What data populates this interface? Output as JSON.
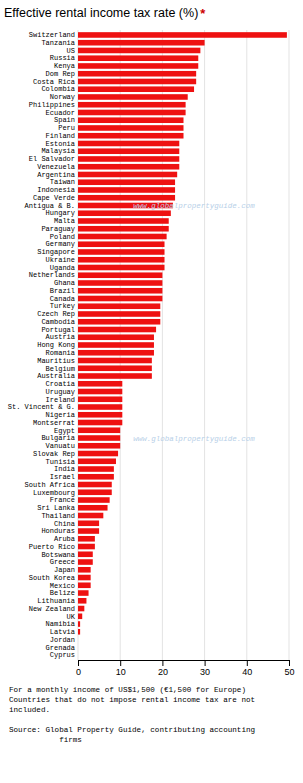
{
  "chart_data": {
    "type": "bar",
    "orientation": "horizontal",
    "title": "Effective rental income tax rate (%)",
    "annotations": [
      {
        "text": "*",
        "color": "#cc0000"
      },
      {
        "text": "www.globalpropertyguide.com",
        "color": "#b8d0e8"
      },
      {
        "text": "www.globalpropertyguide.com",
        "color": "#b8d0e8"
      }
    ],
    "footnotes": [
      [
        "For a monthly income of US$1,500 (€1,500 for Europe)",
        "Countries that do not impose rental income tax are not",
        "included."
      ],
      [
        "Source: Global Property Guide, contributing accounting",
        "           firms"
      ]
    ],
    "color": "#ee1111",
    "grid": true,
    "xlim": [
      0,
      50
    ],
    "xticks": [
      0,
      10,
      20,
      30,
      40,
      50
    ],
    "categories": [
      "Switzerland",
      "Tanzania",
      "US",
      "Russia",
      "Kenya",
      "Dom Rep",
      "Costa Rica",
      "Colombia",
      "Norway",
      "Philippines",
      "Ecuador",
      "Spain",
      "Peru",
      "Finland",
      "Estonia",
      "Malaysia",
      "El Salvador",
      "Venezuela",
      "Argentina",
      "Taiwan",
      "Indonesia",
      "Cape Verde",
      "Antigua & B.",
      "Hungary",
      "Malta",
      "Paraguay",
      "Poland",
      "Germany",
      "Singapore",
      "Ukraine",
      "Uganda",
      "Netherlands",
      "Ghana",
      "Brazil",
      "Canada",
      "Turkey",
      "Czech Rep",
      "Cambodia",
      "Portugal",
      "Austria",
      "Hong Kong",
      "Romania",
      "Mauritius",
      "Belgium",
      "Australia",
      "Croatia",
      "Uruguay",
      "Ireland",
      "St. Vincent & G.",
      "Nigeria",
      "Montserrat",
      "Egypt",
      "Bulgaria",
      "Vanuatu",
      "Slovak Rep",
      "Tunisia",
      "India",
      "Israel",
      "South Africa",
      "Luxembourg",
      "France",
      "Sri Lanka",
      "Thailand",
      "China",
      "Honduras",
      "Aruba",
      "Puerto Rico",
      "Botswana",
      "Greece",
      "Japan",
      "South Korea",
      "Mexico",
      "Belize",
      "Lithuania",
      "New Zealand",
      "UK",
      "Namibia",
      "Latvia",
      "Jordan",
      "Grenada",
      "Cyprus"
    ],
    "values": [
      49.5,
      30.0,
      29.0,
      28.5,
      28.5,
      28.0,
      28.0,
      27.5,
      26.0,
      25.5,
      25.5,
      25.0,
      25.0,
      25.0,
      24.0,
      24.0,
      24.0,
      24.0,
      23.5,
      23.0,
      23.0,
      23.0,
      22.5,
      22.0,
      21.5,
      21.5,
      21.0,
      20.5,
      20.5,
      20.5,
      20.5,
      20.0,
      20.0,
      20.0,
      20.0,
      19.5,
      19.5,
      19.5,
      18.5,
      18.0,
      18.0,
      18.0,
      17.5,
      17.5,
      17.5,
      10.5,
      10.5,
      10.5,
      10.5,
      10.5,
      10.5,
      10.0,
      10.0,
      10.0,
      9.5,
      9.0,
      8.5,
      8.5,
      8.0,
      8.0,
      7.5,
      7.0,
      6.0,
      5.0,
      5.0,
      4.0,
      4.0,
      3.5,
      3.5,
      3.0,
      3.0,
      3.0,
      2.5,
      2.0,
      1.5,
      1.0,
      0.5,
      0.5,
      0.0,
      0.0,
      0.0
    ]
  }
}
